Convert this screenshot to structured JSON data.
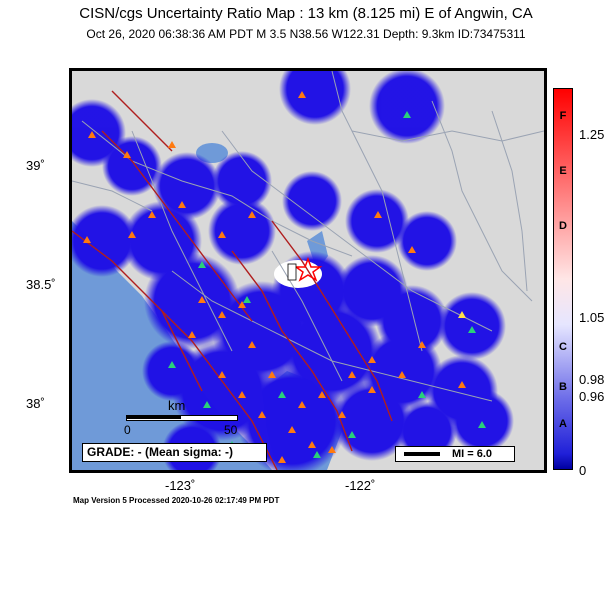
{
  "title": "CISN/cgs Uncertainty Ratio Map : 13 km (8.125 mi) E of Angwin, CA",
  "subtitle": "Oct 26, 2020 06:38:36 AM PDT   M 3.5   N38.56 W122.31   Depth: 9.3km   ID:73475311",
  "lat_labels": [
    "39˚",
    "38.5˚",
    "38˚"
  ],
  "lon_labels": [
    "-123˚",
    "-122˚"
  ],
  "scale": {
    "unit": "km",
    "start": "0",
    "end": "50"
  },
  "grade_text": "GRADE: - (Mean sigma: -)",
  "mi_text": "MI = 6.0",
  "footer": "Map Version 5 Processed 2020-10-26 02:17:49 PM PDT",
  "colorbar": {
    "ticks": [
      "1.25",
      "1.05",
      "0.98",
      "0.96",
      "0"
    ],
    "letters": [
      "F",
      "E",
      "D",
      "C",
      "B",
      "A"
    ]
  },
  "colors": {
    "uncertainty_blue": "#1f10e6",
    "water": "#6f9ad8",
    "land": "#d9d9d9",
    "fault": "#b01e1e",
    "station_orange": "#ff7a10",
    "station_green": "#2ad07a",
    "epicenter": "#ff0000"
  }
}
